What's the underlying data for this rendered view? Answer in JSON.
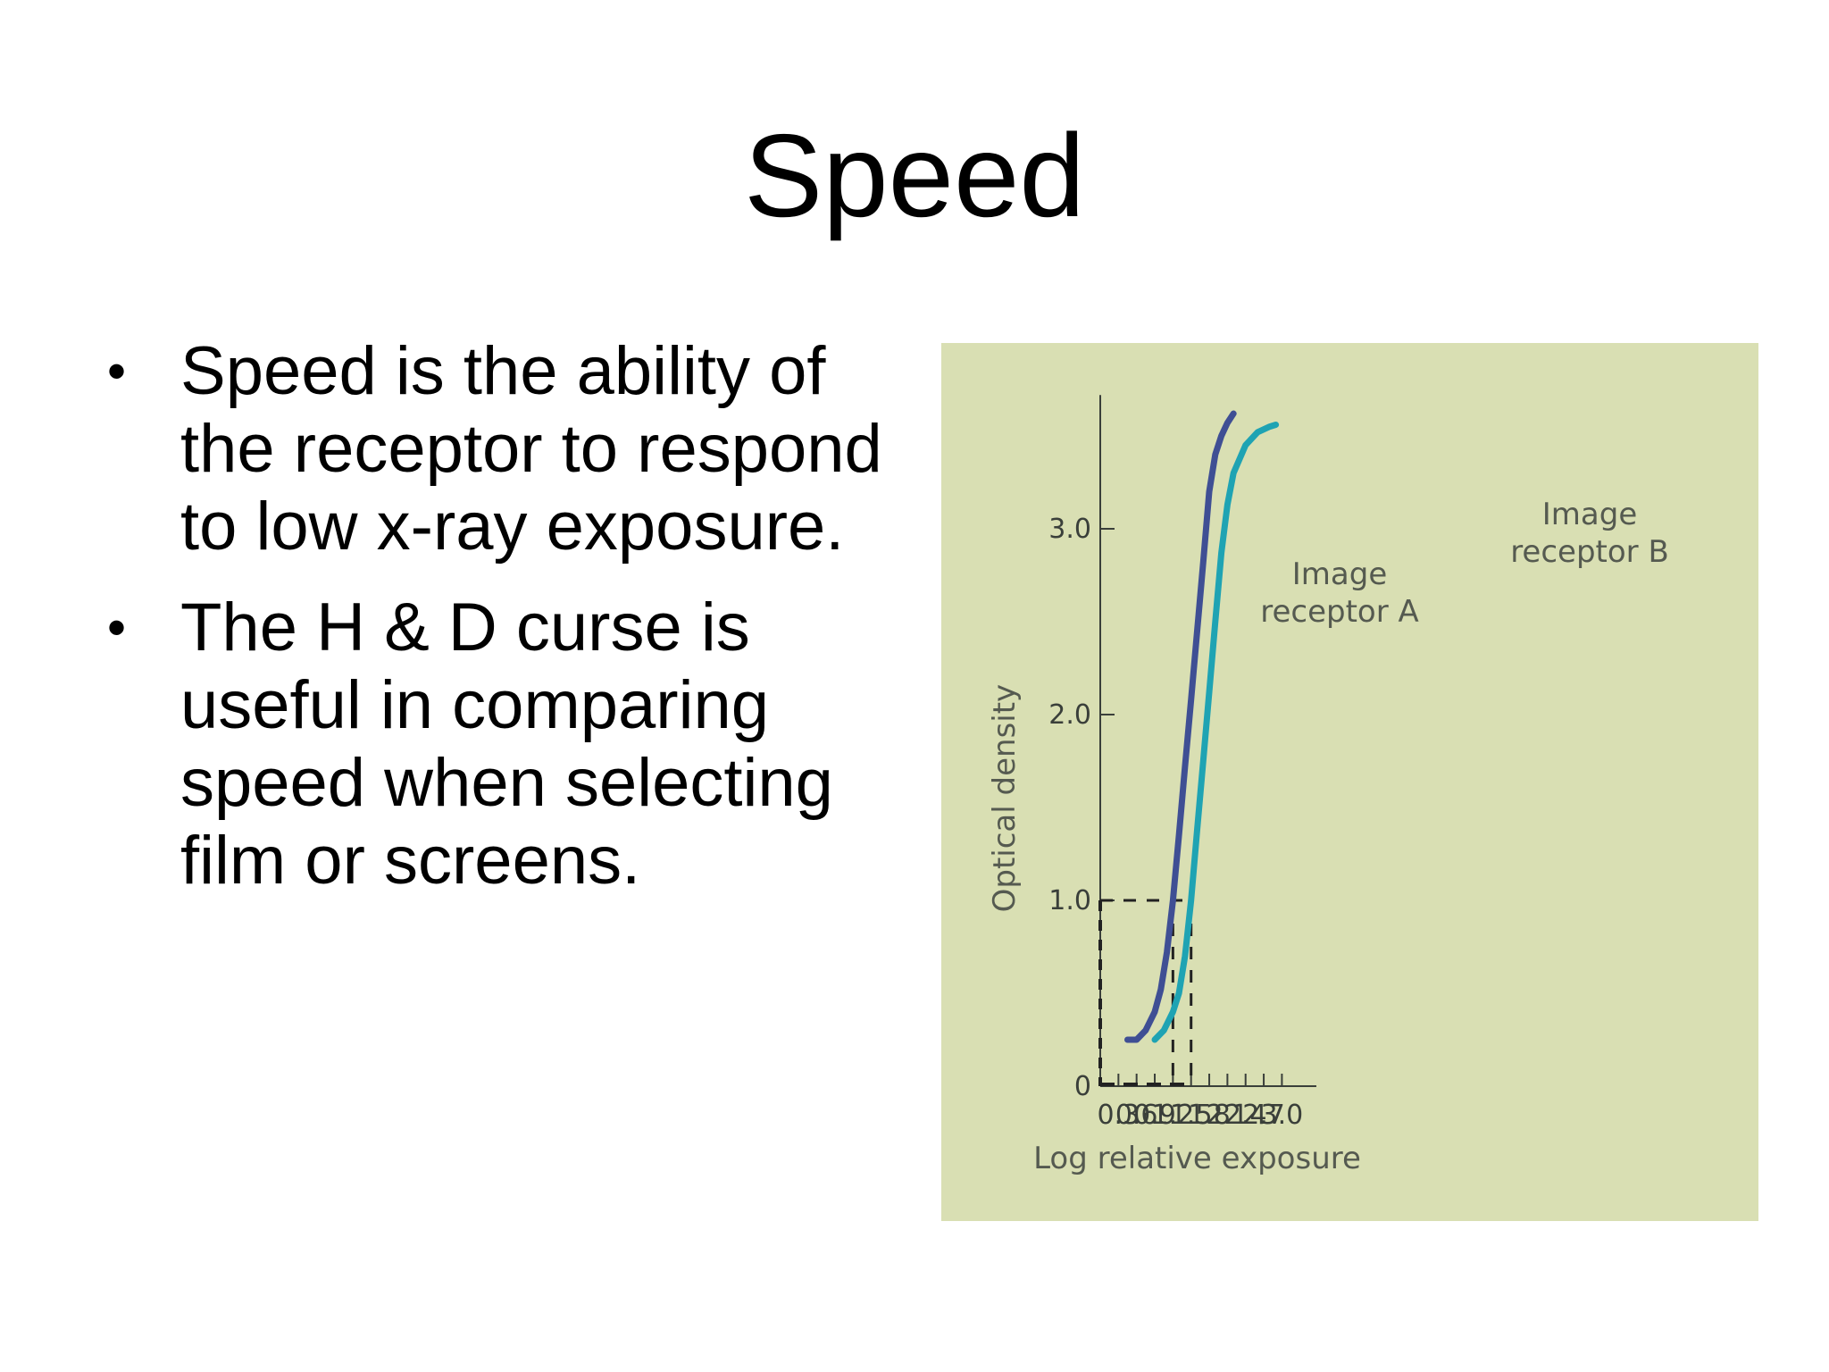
{
  "slide": {
    "title": "Speed",
    "bullets": [
      "Speed is the ability of the receptor to respond to low x-ray exposure.",
      "The H & D curse is useful in comparing speed when selecting film or screens."
    ],
    "bullet_glyph": "•"
  },
  "colors": {
    "background": "#ffffff",
    "chart_background": "#d9dfb3",
    "receptor_a": "#3f4f94",
    "receptor_b": "#1fa3b3",
    "axis": "#3a3f3a"
  },
  "chart_data": {
    "type": "line",
    "xlabel": "Log relative exposure",
    "ylabel": "Optical density",
    "x_ticks": [
      0.3,
      0.6,
      0.9,
      1.2,
      1.5,
      1.8,
      2.1,
      2.4,
      2.7,
      3.0
    ],
    "x_tick_labels": [
      "0.3",
      "0.6",
      "0.9",
      "1.2",
      "1.5",
      "1.8",
      "2.1",
      "2.4",
      "2.7",
      "3.0"
    ],
    "y_ticks": [
      0,
      1.0,
      2.0,
      3.0
    ],
    "y_tick_labels": [
      "0",
      "1.0",
      "2.0",
      "3.0"
    ],
    "xlim": [
      0,
      3.2
    ],
    "ylim": [
      0,
      3.6
    ],
    "grid": false,
    "legend": "none",
    "series": [
      {
        "name": "Image receptor A",
        "x": [
          0.45,
          0.6,
          0.75,
          0.9,
          1.0,
          1.1,
          1.2,
          1.3,
          1.4,
          1.5,
          1.6,
          1.7,
          1.8,
          1.9,
          2.0,
          2.1,
          2.2
        ],
        "y": [
          0.25,
          0.25,
          0.3,
          0.4,
          0.52,
          0.72,
          1.0,
          1.35,
          1.72,
          2.08,
          2.45,
          2.82,
          3.2,
          3.4,
          3.5,
          3.57,
          3.62
        ]
      },
      {
        "name": "Image receptor B",
        "x": [
          0.9,
          1.05,
          1.2,
          1.3,
          1.4,
          1.5,
          1.6,
          1.7,
          1.8,
          1.9,
          2.0,
          2.1,
          2.2,
          2.4,
          2.6,
          2.8,
          2.9
        ],
        "y": [
          0.25,
          0.3,
          0.4,
          0.5,
          0.7,
          1.0,
          1.38,
          1.75,
          2.12,
          2.5,
          2.87,
          3.13,
          3.3,
          3.45,
          3.52,
          3.55,
          3.56
        ]
      }
    ],
    "reference_lines": {
      "y": 1.0,
      "x": [
        1.2,
        1.5
      ]
    }
  }
}
